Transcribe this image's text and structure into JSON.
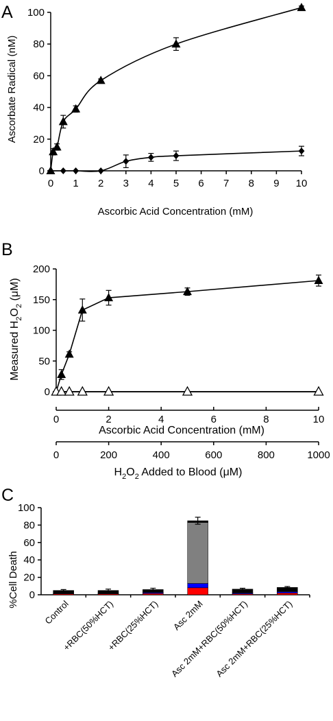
{
  "chart_data": [
    {
      "panel": "A",
      "type": "line",
      "xlabel": "Ascorbic Acid Concentration (mM)",
      "ylabel": "Ascorbate Radical (nM)",
      "xlim": [
        0,
        10
      ],
      "ylim": [
        0,
        100
      ],
      "xticks": [
        "0",
        "1",
        "2",
        "3",
        "4",
        "5",
        "6",
        "7",
        "8",
        "9",
        "10"
      ],
      "yticks": [
        "0",
        "20",
        "40",
        "60",
        "80",
        "100"
      ],
      "series": [
        {
          "marker": "triangle",
          "x": [
            0,
            0.1,
            0.25,
            0.5,
            1,
            2,
            5,
            10
          ],
          "y": [
            0,
            12,
            15,
            31,
            39,
            57,
            80,
            103
          ],
          "err": [
            0,
            2,
            2,
            4,
            2,
            1,
            4,
            1
          ]
        },
        {
          "marker": "diamond",
          "x": [
            0,
            0.5,
            1,
            2,
            3,
            4,
            5,
            10
          ],
          "y": [
            0,
            0,
            0,
            0,
            6,
            8.5,
            9.5,
            12.5
          ],
          "err": [
            0,
            0,
            0,
            0,
            4,
            2.5,
            3,
            3
          ]
        }
      ]
    },
    {
      "panel": "B",
      "type": "line",
      "ylabel": "Measured H2O2 (μM)",
      "ylabel_parts": {
        "pre": "Measured H",
        "sub1": "2",
        "mid": "O",
        "sub2": "2",
        "post": " (μM)"
      },
      "ylim": [
        0,
        200
      ],
      "yticks": [
        "0",
        "50",
        "100",
        "150",
        "200"
      ],
      "xaxis1": {
        "label": "Ascorbic Acid Concentration (mM)",
        "lim": [
          0,
          10
        ],
        "ticks": [
          "0",
          "2",
          "4",
          "6",
          "8",
          "10"
        ]
      },
      "xaxis2": {
        "label": "H2O2 Added to Blood (μM)",
        "label_parts": {
          "pre": "H",
          "sub1": "2",
          "mid": "O",
          "sub2": "2",
          "post": " Added to Blood (μM)"
        },
        "lim": [
          0,
          1000
        ],
        "ticks": [
          "0",
          "200",
          "400",
          "600",
          "800",
          "1000"
        ]
      },
      "series": [
        {
          "marker": "triangle",
          "x": [
            0,
            0.2,
            0.5,
            1,
            2,
            5,
            10
          ],
          "y": [
            0,
            28,
            61,
            133,
            153,
            163,
            181
          ],
          "err": [
            0,
            8,
            4,
            18,
            12,
            6,
            9
          ]
        },
        {
          "marker": "diamond",
          "x": [
            0,
            0.2,
            0.5,
            1,
            2,
            5,
            10
          ],
          "y": [
            0,
            0,
            0,
            0,
            0,
            0,
            0
          ]
        },
        {
          "marker": "open-triangle",
          "x": [
            0,
            0.2,
            0.5,
            1,
            2,
            5,
            10
          ],
          "y": [
            0,
            0,
            0,
            0,
            0,
            0,
            0
          ]
        }
      ]
    },
    {
      "panel": "C",
      "type": "bar",
      "ylabel": "%Cell Death",
      "ylim": [
        0,
        100
      ],
      "yticks": [
        "0",
        "20",
        "40",
        "60",
        "80",
        "100"
      ],
      "categories": [
        "Control",
        "+RBC(50%HCT)",
        "+RBC(25%HCT)",
        "Asc 2mM",
        "Asc 2mM+RBC(50%HCT)",
        "Asc 2mM+RBC(25%HCT)"
      ],
      "stacks": [
        {
          "color": "#ff0000",
          "values": [
            1,
            1,
            1.5,
            8,
            1,
            2
          ]
        },
        {
          "color": "#0000ff",
          "values": [
            0.5,
            0.5,
            1,
            5,
            1,
            1.5
          ]
        },
        {
          "color": "#808080",
          "values": [
            0.5,
            0.5,
            0.5,
            70,
            0.5,
            0.5
          ]
        },
        {
          "color": "#000000",
          "values": [
            3,
            3,
            3,
            2,
            4,
            4.5
          ]
        }
      ],
      "err": [
        1,
        1.5,
        1.5,
        4,
        1,
        1
      ]
    }
  ]
}
